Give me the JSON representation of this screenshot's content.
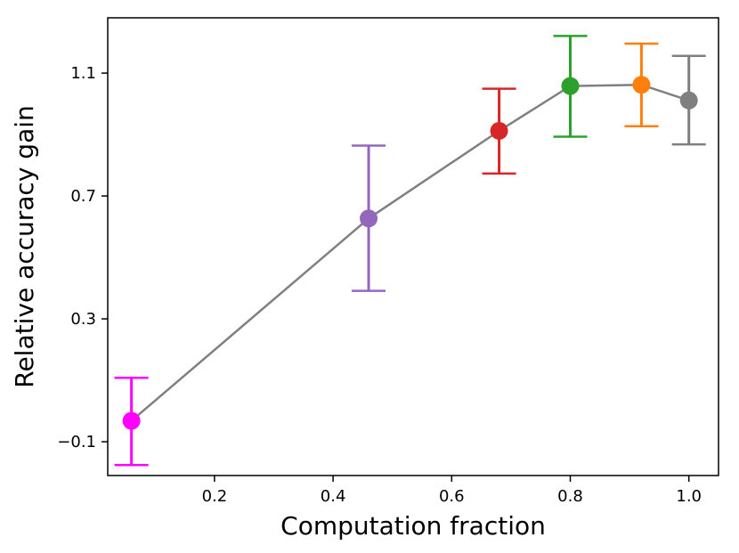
{
  "chart_data": {
    "type": "line",
    "title": "",
    "xlabel": "Computation fraction",
    "ylabel": "Relative accuracy gain",
    "xlim": [
      0.02,
      1.05
    ],
    "ylim": [
      -0.21,
      1.28
    ],
    "xticks": [
      0.2,
      0.4,
      0.6,
      0.8,
      1.0
    ],
    "xtick_labels": [
      "0.2",
      "0.4",
      "0.6",
      "0.8",
      "1.0"
    ],
    "yticks": [
      -0.1,
      0.3,
      0.7,
      1.1
    ],
    "ytick_labels": [
      "−0.1",
      "0.3",
      "0.7",
      "1.1"
    ],
    "grid": false,
    "line_color": "#808080",
    "points": [
      {
        "x": 0.06,
        "y": -0.032,
        "err_low": -0.176,
        "err_high": 0.108,
        "color": "#ff00ff"
      },
      {
        "x": 0.46,
        "y": 0.627,
        "err_low": 0.391,
        "err_high": 0.864,
        "color": "#9467bd"
      },
      {
        "x": 0.68,
        "y": 0.912,
        "err_low": 0.773,
        "err_high": 1.049,
        "color": "#d62728"
      },
      {
        "x": 0.8,
        "y": 1.058,
        "err_low": 0.893,
        "err_high": 1.221,
        "color": "#2ca02c"
      },
      {
        "x": 0.92,
        "y": 1.062,
        "err_low": 0.927,
        "err_high": 1.196,
        "color": "#ff7f0e"
      },
      {
        "x": 1.0,
        "y": 1.011,
        "err_low": 0.868,
        "err_high": 1.156,
        "color": "#7f7f7f"
      }
    ]
  }
}
